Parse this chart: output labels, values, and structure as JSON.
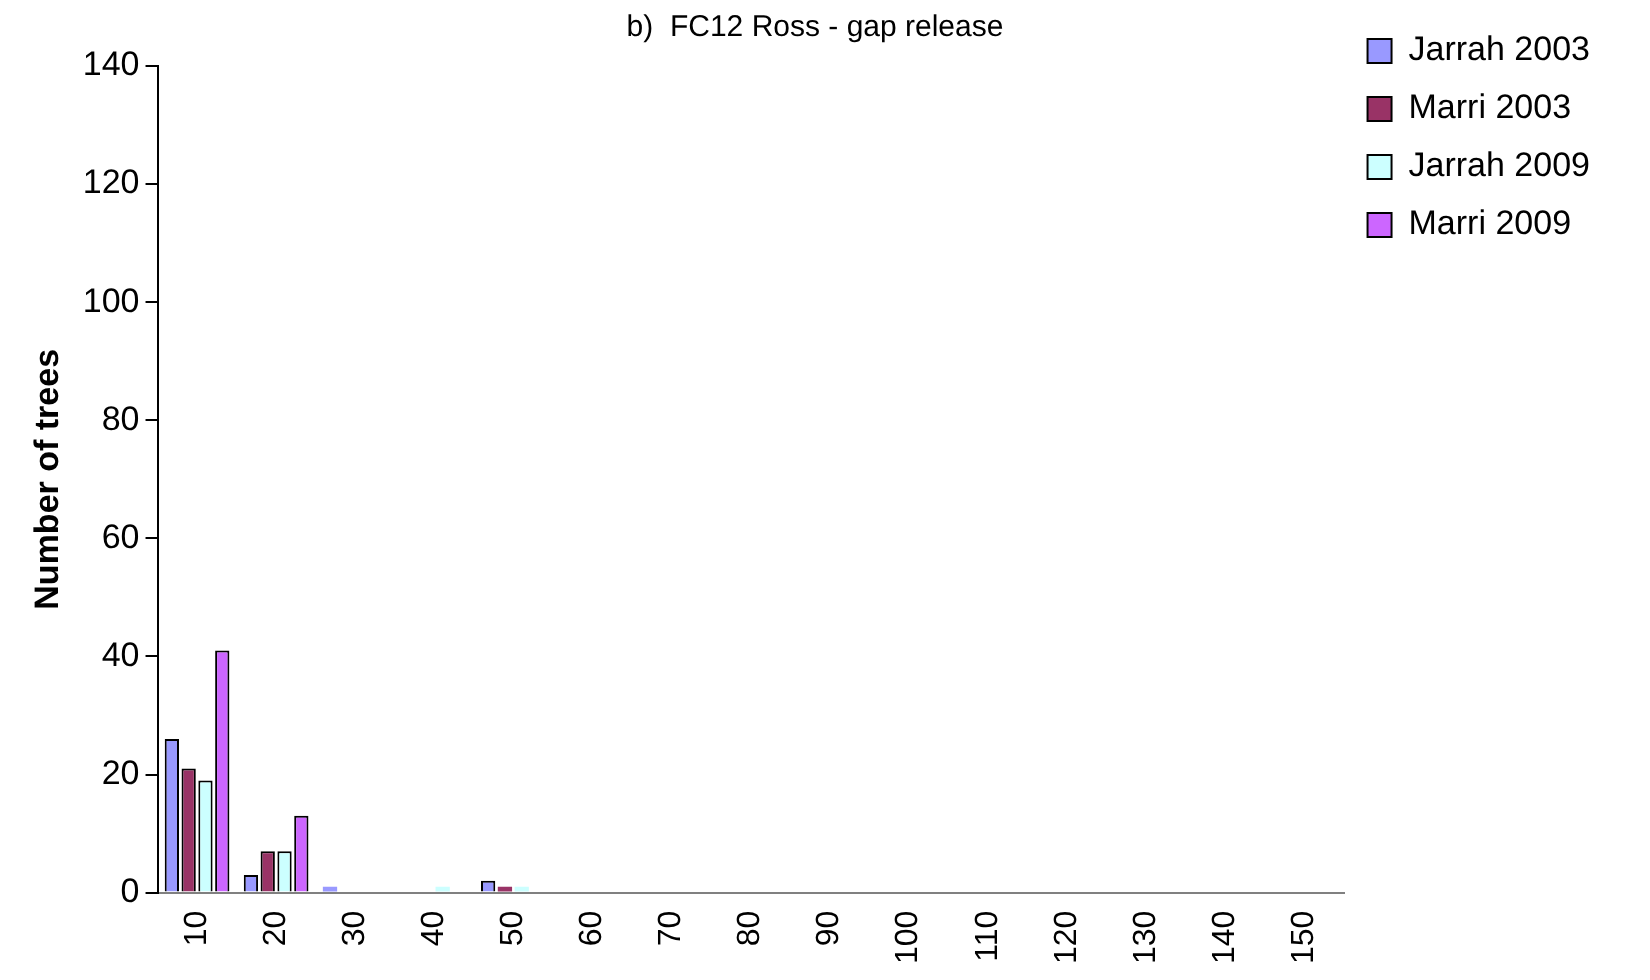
{
  "chart_data": {
    "type": "bar",
    "title": "b)  FC12 Ross - gap release",
    "ylabel": "Number of trees",
    "categories": [
      "10",
      "20",
      "30",
      "40",
      "50",
      "60",
      "70",
      "80",
      "90",
      "100",
      "110",
      "120",
      "130",
      "140",
      "150"
    ],
    "series": [
      {
        "name": "Jarrah 2003",
        "color": "#9999ff",
        "values": [
          26,
          3,
          1,
          0,
          2,
          0,
          0,
          0,
          0,
          0,
          0,
          0,
          0,
          0,
          0
        ]
      },
      {
        "name": "Marri 2003",
        "color": "#993366",
        "values": [
          21,
          7,
          0,
          0,
          1,
          0,
          0,
          0,
          0,
          0,
          0,
          0,
          0,
          0,
          0
        ]
      },
      {
        "name": "Jarrah 2009",
        "color": "#ccffff",
        "values": [
          19,
          7,
          0,
          1,
          1,
          0,
          0,
          0,
          0,
          0,
          0,
          0,
          0,
          0,
          0
        ]
      },
      {
        "name": "Marri 2009",
        "color": "#cc66ff",
        "values": [
          41,
          13,
          0,
          0,
          0,
          0,
          0,
          0,
          0,
          0,
          0,
          0,
          0,
          0,
          0
        ]
      }
    ],
    "ylim": [
      0,
      140
    ],
    "yticks": [
      0,
      20,
      40,
      60,
      80,
      100,
      120,
      140
    ],
    "grid": false,
    "legend": "top right"
  }
}
